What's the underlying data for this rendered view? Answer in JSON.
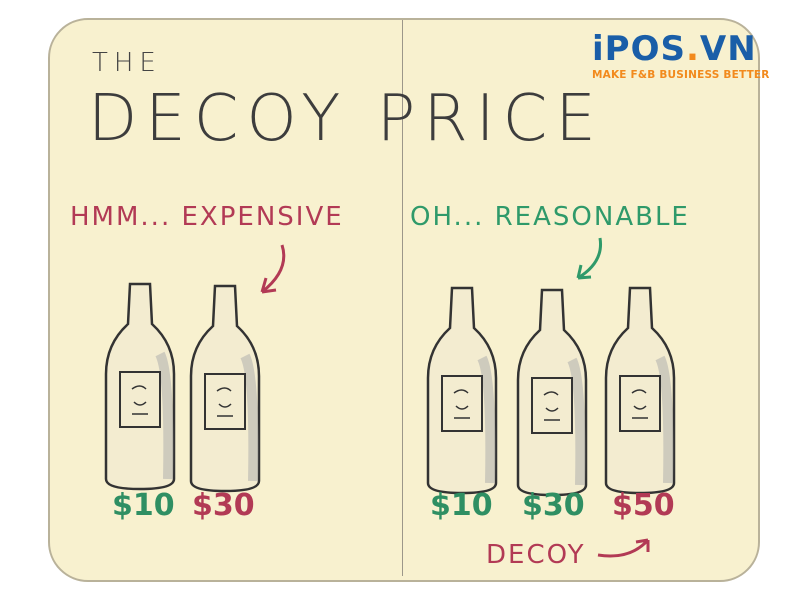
{
  "title": {
    "line1": "THE",
    "line2": "DECOY PRICE"
  },
  "logo": {
    "name": "iPOS.VN",
    "tagline": "MAKE F&B BUSINESS BETTER",
    "brand_color": "#1a5ea8",
    "accent_color": "#f28a1d"
  },
  "left_panel": {
    "caption": "HMM... EXPENSIVE",
    "prices": [
      "$10",
      "$30"
    ]
  },
  "right_panel": {
    "caption": "OH... REASONABLE",
    "prices": [
      "$10",
      "$30",
      "$50"
    ],
    "decoy_label": "DECOY"
  },
  "colors": {
    "caption_red": "#b23a55",
    "caption_green": "#2f9a6a",
    "background": "#f8f1cf"
  }
}
